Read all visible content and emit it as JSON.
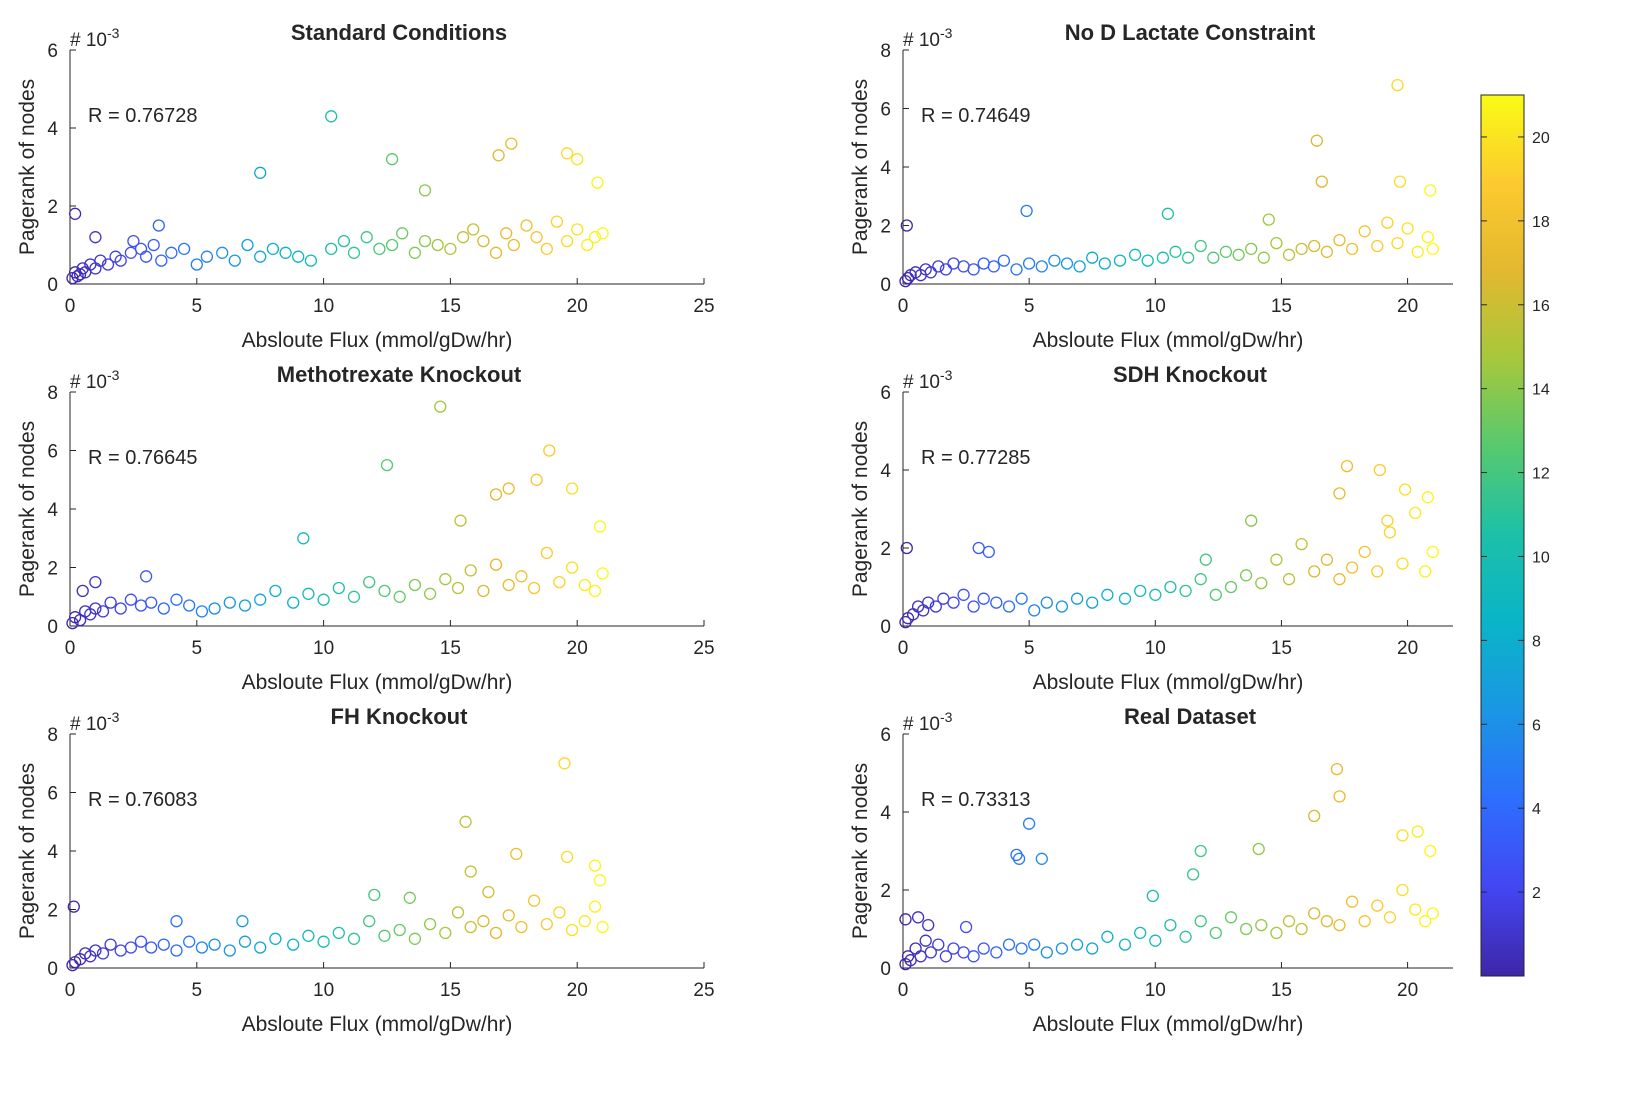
{
  "figure": {
    "colorbar": {
      "min": 0,
      "max": 21,
      "ticks": [
        2,
        4,
        6,
        8,
        10,
        12,
        14,
        16,
        18,
        20
      ],
      "colormap": "parula",
      "colormap_stops": [
        "#3e26a8",
        "#4346f2",
        "#2d6efe",
        "#1a96e4",
        "#0ab4c8",
        "#1cc0a8",
        "#56c96f",
        "#a6c83c",
        "#e3b82f",
        "#fcca2f",
        "#f9fb15"
      ]
    }
  },
  "chart_data": [
    {
      "type": "scatter",
      "title": "Standard Conditions",
      "xlabel": "Absloute Flux (mmol/gDw/hr)",
      "ylabel": "Pagerank of nodes",
      "y_exponent_label": "# 10",
      "y_exponent": "-3",
      "r_label": "R = 0.76728",
      "xlim": [
        0,
        25
      ],
      "ylim": [
        0,
        6
      ],
      "xticks": [
        0,
        5,
        10,
        15,
        20,
        25
      ],
      "yticks": [
        0,
        2,
        4,
        6
      ],
      "x": [
        0.1,
        0.2,
        0.3,
        0.4,
        0.5,
        0.6,
        0.8,
        1.0,
        1.2,
        1.5,
        1.8,
        2.0,
        2.4,
        2.8,
        3.0,
        3.3,
        3.6,
        4.0,
        4.5,
        5.0,
        5.4,
        6.0,
        6.5,
        7.0,
        7.5,
        8.0,
        8.5,
        9.0,
        9.5,
        10.3,
        10.8,
        11.2,
        11.7,
        12.2,
        12.7,
        13.1,
        13.6,
        14.0,
        14.5,
        15.0,
        15.5,
        15.9,
        16.3,
        16.8,
        17.2,
        17.5,
        18.0,
        18.4,
        18.8,
        19.2,
        19.6,
        20.0,
        20.4,
        20.7,
        21.0,
        0.2,
        1.0,
        2.5,
        3.5,
        7.5,
        10.3,
        12.7,
        14.0,
        16.9,
        17.4,
        19.6,
        20.0,
        20.8
      ],
      "y": [
        0.15,
        0.3,
        0.2,
        0.25,
        0.4,
        0.3,
        0.5,
        0.4,
        0.6,
        0.5,
        0.7,
        0.6,
        0.8,
        0.9,
        0.7,
        1.0,
        0.6,
        0.8,
        0.9,
        0.5,
        0.7,
        0.8,
        0.6,
        1.0,
        0.7,
        0.9,
        0.8,
        0.7,
        0.6,
        0.9,
        1.1,
        0.8,
        1.2,
        0.9,
        1.0,
        1.3,
        0.8,
        1.1,
        1.0,
        0.9,
        1.2,
        1.4,
        1.1,
        0.8,
        1.3,
        1.0,
        1.5,
        1.2,
        0.9,
        1.6,
        1.1,
        1.4,
        1.0,
        1.2,
        1.3,
        1.8,
        1.2,
        1.1,
        1.5,
        2.85,
        4.3,
        3.2,
        2.4,
        3.3,
        3.6,
        3.35,
        3.2,
        2.6
      ],
      "c": [
        0.1,
        0.2,
        0.3,
        0.4,
        0.5,
        0.6,
        0.8,
        1.0,
        1.2,
        1.5,
        1.8,
        2.0,
        2.4,
        2.8,
        3.0,
        3.3,
        3.6,
        4.0,
        4.5,
        5.0,
        5.4,
        6.0,
        6.5,
        7.0,
        7.5,
        8.0,
        8.5,
        9.0,
        9.5,
        10.3,
        10.8,
        11.2,
        11.7,
        12.2,
        12.7,
        13.1,
        13.6,
        14.0,
        14.5,
        15.0,
        15.5,
        15.9,
        16.3,
        16.8,
        17.2,
        17.5,
        18.0,
        18.4,
        18.8,
        19.2,
        19.6,
        20.0,
        20.4,
        20.7,
        21.0,
        0.2,
        1.0,
        2.5,
        3.5,
        7.5,
        10.3,
        12.7,
        14.0,
        16.9,
        17.4,
        19.6,
        20.0,
        20.8
      ]
    },
    {
      "type": "scatter",
      "title": "No D Lactate Constraint",
      "xlabel": "Absloute Flux (mmol/gDw/hr)",
      "ylabel": "Pagerank of nodes",
      "y_exponent_label": "# 10",
      "y_exponent": "-3",
      "r_label": "R = 0.74649",
      "xlim": [
        0,
        21.8
      ],
      "ylim": [
        0,
        8
      ],
      "xticks": [
        0,
        5,
        10,
        15,
        20
      ],
      "yticks": [
        0,
        2,
        4,
        6,
        8
      ],
      "x": [
        0.1,
        0.2,
        0.3,
        0.5,
        0.7,
        0.9,
        1.1,
        1.4,
        1.7,
        2.0,
        2.4,
        2.8,
        3.2,
        3.6,
        4.0,
        4.5,
        5.0,
        5.5,
        6.0,
        6.5,
        7.0,
        7.5,
        8.0,
        8.6,
        9.2,
        9.7,
        10.3,
        10.8,
        11.3,
        11.8,
        12.3,
        12.8,
        13.3,
        13.8,
        14.3,
        14.8,
        15.3,
        15.8,
        16.3,
        16.8,
        17.3,
        17.8,
        18.3,
        18.8,
        19.2,
        19.6,
        20.0,
        20.4,
        20.8,
        21.0,
        0.15,
        4.9,
        10.5,
        14.5,
        16.4,
        16.6,
        19.6,
        19.7,
        20.9
      ],
      "y": [
        0.1,
        0.2,
        0.3,
        0.4,
        0.3,
        0.5,
        0.4,
        0.6,
        0.5,
        0.7,
        0.6,
        0.5,
        0.7,
        0.6,
        0.8,
        0.5,
        0.7,
        0.6,
        0.8,
        0.7,
        0.6,
        0.9,
        0.7,
        0.8,
        1.0,
        0.8,
        0.9,
        1.1,
        0.9,
        1.3,
        0.9,
        1.1,
        1.0,
        1.2,
        0.9,
        1.4,
        1.0,
        1.2,
        1.3,
        1.1,
        1.5,
        1.2,
        1.8,
        1.3,
        2.1,
        1.4,
        1.9,
        1.1,
        1.6,
        1.2,
        2.0,
        2.5,
        2.4,
        2.2,
        4.9,
        3.5,
        6.8,
        3.5,
        3.2
      ],
      "c": [
        0.1,
        0.2,
        0.3,
        0.5,
        0.7,
        0.9,
        1.1,
        1.4,
        1.7,
        2.0,
        2.4,
        2.8,
        3.2,
        3.6,
        4.0,
        4.5,
        5.0,
        5.5,
        6.0,
        6.5,
        7.0,
        7.5,
        8.0,
        8.6,
        9.2,
        9.7,
        10.3,
        10.8,
        11.3,
        11.8,
        12.3,
        12.8,
        13.3,
        13.8,
        14.3,
        14.8,
        15.3,
        15.8,
        16.3,
        16.8,
        17.3,
        17.8,
        18.3,
        18.8,
        19.2,
        19.6,
        20.0,
        20.4,
        20.8,
        21.0,
        0.15,
        4.9,
        10.5,
        14.5,
        16.4,
        16.6,
        19.6,
        19.7,
        20.9
      ]
    },
    {
      "type": "scatter",
      "title": "Methotrexate Knockout",
      "xlabel": "Absloute Flux (mmol/gDw/hr)",
      "ylabel": "Pagerank of nodes",
      "y_exponent_label": "# 10",
      "y_exponent": "-3",
      "r_label": "R = 0.76645",
      "xlim": [
        0,
        25
      ],
      "ylim": [
        0,
        8
      ],
      "xticks": [
        0,
        5,
        10,
        15,
        20,
        25
      ],
      "yticks": [
        0,
        2,
        4,
        6,
        8
      ],
      "x": [
        0.1,
        0.2,
        0.4,
        0.6,
        0.8,
        1.0,
        1.3,
        1.6,
        2.0,
        2.4,
        2.8,
        3.2,
        3.7,
        4.2,
        4.7,
        5.2,
        5.7,
        6.3,
        6.9,
        7.5,
        8.1,
        8.8,
        9.4,
        10.0,
        10.6,
        11.2,
        11.8,
        12.4,
        13.0,
        13.6,
        14.2,
        14.8,
        15.3,
        15.8,
        16.3,
        16.8,
        17.3,
        17.8,
        18.3,
        18.8,
        19.3,
        19.8,
        20.3,
        20.7,
        21.0,
        0.5,
        1.0,
        3.0,
        9.2,
        12.5,
        14.6,
        15.4,
        16.8,
        17.3,
        18.4,
        18.9,
        19.8,
        20.9
      ],
      "y": [
        0.1,
        0.3,
        0.2,
        0.5,
        0.4,
        0.6,
        0.5,
        0.8,
        0.6,
        0.9,
        0.7,
        0.8,
        0.6,
        0.9,
        0.7,
        0.5,
        0.6,
        0.8,
        0.7,
        0.9,
        1.2,
        0.8,
        1.1,
        0.9,
        1.3,
        1.0,
        1.5,
        1.2,
        1.0,
        1.4,
        1.1,
        1.6,
        1.3,
        1.9,
        1.2,
        2.1,
        1.4,
        1.7,
        1.3,
        2.5,
        1.5,
        2.0,
        1.4,
        1.2,
        1.8,
        1.2,
        1.5,
        1.7,
        3.0,
        5.5,
        7.5,
        3.6,
        4.5,
        4.7,
        5.0,
        6.0,
        4.7,
        3.4
      ],
      "c": [
        0.1,
        0.2,
        0.4,
        0.6,
        0.8,
        1.0,
        1.3,
        1.6,
        2.0,
        2.4,
        2.8,
        3.2,
        3.7,
        4.2,
        4.7,
        5.2,
        5.7,
        6.3,
        6.9,
        7.5,
        8.1,
        8.8,
        9.4,
        10.0,
        10.6,
        11.2,
        11.8,
        12.4,
        13.0,
        13.6,
        14.2,
        14.8,
        15.3,
        15.8,
        16.3,
        16.8,
        17.3,
        17.8,
        18.3,
        18.8,
        19.3,
        19.8,
        20.3,
        20.7,
        21.0,
        0.5,
        1.0,
        3.0,
        9.2,
        12.5,
        14.6,
        15.4,
        16.8,
        17.3,
        18.4,
        18.9,
        19.8,
        20.9
      ]
    },
    {
      "type": "scatter",
      "title": "SDH Knockout",
      "xlabel": "Absloute Flux (mmol/gDw/hr)",
      "ylabel": "Pagerank of nodes",
      "y_exponent_label": "# 10",
      "y_exponent": "-3",
      "r_label": "R = 0.77285",
      "xlim": [
        0,
        21.8
      ],
      "ylim": [
        0,
        6
      ],
      "xticks": [
        0,
        5,
        10,
        15,
        20
      ],
      "yticks": [
        0,
        2,
        4,
        6
      ],
      "x": [
        0.1,
        0.2,
        0.4,
        0.6,
        0.8,
        1.0,
        1.3,
        1.6,
        2.0,
        2.4,
        2.8,
        3.2,
        3.7,
        4.2,
        4.7,
        5.2,
        5.7,
        6.3,
        6.9,
        7.5,
        8.1,
        8.8,
        9.4,
        10.0,
        10.6,
        11.2,
        11.8,
        12.4,
        13.0,
        13.6,
        14.2,
        14.8,
        15.3,
        15.8,
        16.3,
        16.8,
        17.3,
        17.8,
        18.3,
        18.8,
        19.3,
        19.8,
        20.3,
        20.7,
        21.0,
        0.15,
        3.0,
        3.4,
        12.0,
        13.8,
        17.3,
        17.6,
        18.9,
        19.2,
        19.9,
        20.8
      ],
      "y": [
        0.1,
        0.2,
        0.3,
        0.5,
        0.4,
        0.6,
        0.5,
        0.7,
        0.6,
        0.8,
        0.5,
        0.7,
        0.6,
        0.5,
        0.7,
        0.4,
        0.6,
        0.5,
        0.7,
        0.6,
        0.8,
        0.7,
        0.9,
        0.8,
        1.0,
        0.9,
        1.2,
        0.8,
        1.0,
        1.3,
        1.1,
        1.7,
        1.2,
        2.1,
        1.4,
        1.7,
        1.2,
        1.5,
        1.9,
        1.4,
        2.4,
        1.6,
        2.9,
        1.4,
        1.9,
        2.0,
        2.0,
        1.9,
        1.7,
        2.7,
        3.4,
        4.1,
        4.0,
        2.7,
        3.5,
        3.3
      ],
      "c": [
        0.1,
        0.2,
        0.4,
        0.6,
        0.8,
        1.0,
        1.3,
        1.6,
        2.0,
        2.4,
        2.8,
        3.2,
        3.7,
        4.2,
        4.7,
        5.2,
        5.7,
        6.3,
        6.9,
        7.5,
        8.1,
        8.8,
        9.4,
        10.0,
        10.6,
        11.2,
        11.8,
        12.4,
        13.0,
        13.6,
        14.2,
        14.8,
        15.3,
        15.8,
        16.3,
        16.8,
        17.3,
        17.8,
        18.3,
        18.8,
        19.3,
        19.8,
        20.3,
        20.7,
        21.0,
        0.15,
        3.0,
        3.4,
        12.0,
        13.8,
        17.3,
        17.6,
        18.9,
        19.2,
        19.9,
        20.8
      ]
    },
    {
      "type": "scatter",
      "title": "FH Knockout",
      "xlabel": "Absloute Flux (mmol/gDw/hr)",
      "ylabel": "Pagerank of nodes",
      "y_exponent_label": "# 10",
      "y_exponent": "-3",
      "r_label": "R = 0.76083",
      "xlim": [
        0,
        25
      ],
      "ylim": [
        0,
        8
      ],
      "xticks": [
        0,
        5,
        10,
        15,
        20,
        25
      ],
      "yticks": [
        0,
        2,
        4,
        6,
        8
      ],
      "x": [
        0.1,
        0.2,
        0.4,
        0.6,
        0.8,
        1.0,
        1.3,
        1.6,
        2.0,
        2.4,
        2.8,
        3.2,
        3.7,
        4.2,
        4.7,
        5.2,
        5.7,
        6.3,
        6.9,
        7.5,
        8.1,
        8.8,
        9.4,
        10.0,
        10.6,
        11.2,
        11.8,
        12.4,
        13.0,
        13.6,
        14.2,
        14.8,
        15.3,
        15.8,
        16.3,
        16.8,
        17.3,
        17.8,
        18.3,
        18.8,
        19.3,
        19.8,
        20.3,
        20.7,
        21.0,
        0.15,
        4.2,
        6.8,
        12.0,
        13.4,
        15.6,
        15.8,
        16.5,
        17.6,
        19.5,
        19.6,
        20.7,
        20.9
      ],
      "y": [
        0.1,
        0.2,
        0.3,
        0.5,
        0.4,
        0.6,
        0.5,
        0.8,
        0.6,
        0.7,
        0.9,
        0.7,
        0.8,
        0.6,
        0.9,
        0.7,
        0.8,
        0.6,
        0.9,
        0.7,
        1.0,
        0.8,
        1.1,
        0.9,
        1.2,
        1.0,
        1.6,
        1.1,
        1.3,
        1.0,
        1.5,
        1.2,
        1.9,
        1.4,
        1.6,
        1.2,
        1.8,
        1.4,
        2.3,
        1.5,
        1.9,
        1.3,
        1.6,
        2.1,
        1.4,
        2.1,
        1.6,
        1.6,
        2.5,
        2.4,
        5.0,
        3.3,
        2.6,
        3.9,
        7.0,
        3.8,
        3.5,
        3.0
      ],
      "c": [
        0.1,
        0.2,
        0.4,
        0.6,
        0.8,
        1.0,
        1.3,
        1.6,
        2.0,
        2.4,
        2.8,
        3.2,
        3.7,
        4.2,
        4.7,
        5.2,
        5.7,
        6.3,
        6.9,
        7.5,
        8.1,
        8.8,
        9.4,
        10.0,
        10.6,
        11.2,
        11.8,
        12.4,
        13.0,
        13.6,
        14.2,
        14.8,
        15.3,
        15.8,
        16.3,
        16.8,
        17.3,
        17.8,
        18.3,
        18.8,
        19.3,
        19.8,
        20.3,
        20.7,
        21.0,
        0.15,
        4.2,
        6.8,
        12.0,
        13.4,
        15.6,
        15.8,
        16.5,
        17.6,
        19.5,
        19.6,
        20.7,
        20.9
      ]
    },
    {
      "type": "scatter",
      "title": "Real Dataset",
      "xlabel": "Absloute Flux (mmol/gDw/hr)",
      "ylabel": "Pagerank of nodes",
      "y_exponent_label": "# 10",
      "y_exponent": "-3",
      "r_label": "R = 0.73313",
      "xlim": [
        0,
        21.8
      ],
      "ylim": [
        0,
        6
      ],
      "xticks": [
        0,
        5,
        10,
        15,
        20
      ],
      "yticks": [
        0,
        2,
        4,
        6
      ],
      "x": [
        0.1,
        0.2,
        0.3,
        0.5,
        0.7,
        0.9,
        1.1,
        1.4,
        1.7,
        2.0,
        2.4,
        2.8,
        3.2,
        3.7,
        4.2,
        4.7,
        5.2,
        5.7,
        6.3,
        6.9,
        7.5,
        8.1,
        8.8,
        9.4,
        10.0,
        10.6,
        11.2,
        11.8,
        12.4,
        13.0,
        13.6,
        14.2,
        14.8,
        15.3,
        15.8,
        16.3,
        16.8,
        17.3,
        17.8,
        18.3,
        18.8,
        19.3,
        19.8,
        20.3,
        20.7,
        21.0,
        0.1,
        0.6,
        1.0,
        2.5,
        4.5,
        4.6,
        5.0,
        5.5,
        9.9,
        11.5,
        11.8,
        14.1,
        16.3,
        17.2,
        17.3,
        19.8,
        20.4,
        20.9
      ],
      "y": [
        0.1,
        0.3,
        0.2,
        0.5,
        0.3,
        0.7,
        0.4,
        0.6,
        0.3,
        0.5,
        0.4,
        0.3,
        0.5,
        0.4,
        0.6,
        0.5,
        0.6,
        0.4,
        0.5,
        0.6,
        0.5,
        0.8,
        0.6,
        0.9,
        0.7,
        1.1,
        0.8,
        1.2,
        0.9,
        1.3,
        1.0,
        1.1,
        0.9,
        1.2,
        1.0,
        1.4,
        1.2,
        1.1,
        1.7,
        1.2,
        1.6,
        1.3,
        2.0,
        1.5,
        1.2,
        1.4,
        1.25,
        1.3,
        1.1,
        1.05,
        2.9,
        2.8,
        3.7,
        2.8,
        1.85,
        2.4,
        3.0,
        3.05,
        3.9,
        5.1,
        4.4,
        3.4,
        3.5,
        3.0
      ],
      "c": [
        0.1,
        0.2,
        0.3,
        0.5,
        0.7,
        0.9,
        1.1,
        1.4,
        1.7,
        2.0,
        2.4,
        2.8,
        3.2,
        3.7,
        4.2,
        4.7,
        5.2,
        5.7,
        6.3,
        6.9,
        7.5,
        8.1,
        8.8,
        9.4,
        10.0,
        10.6,
        11.2,
        11.8,
        12.4,
        13.0,
        13.6,
        14.2,
        14.8,
        15.3,
        15.8,
        16.3,
        16.8,
        17.3,
        17.8,
        18.3,
        18.8,
        19.3,
        19.8,
        20.3,
        20.7,
        21.0,
        0.1,
        0.6,
        1.0,
        2.5,
        4.5,
        4.6,
        5.0,
        5.5,
        9.9,
        11.5,
        11.8,
        14.1,
        16.3,
        17.2,
        17.3,
        19.8,
        20.4,
        20.9
      ]
    }
  ]
}
